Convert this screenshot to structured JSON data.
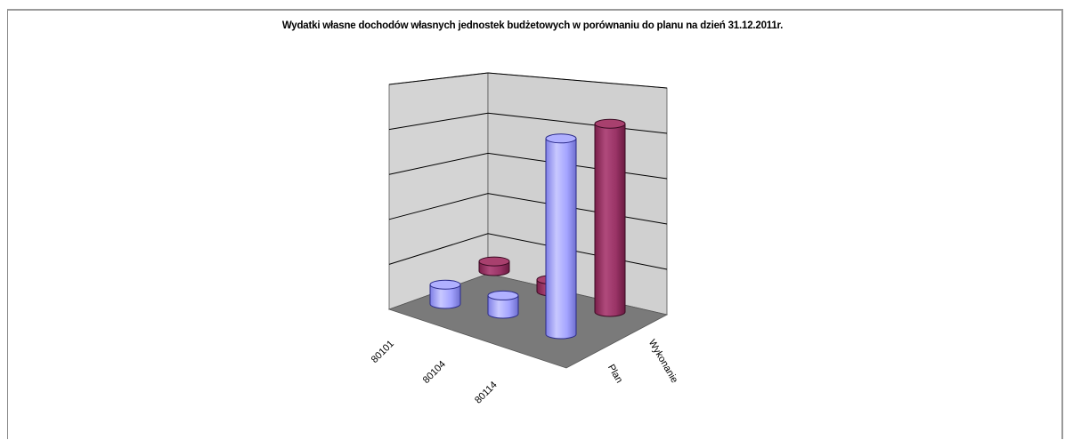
{
  "chart_data": {
    "type": "bar",
    "subtype": "3d-cylinder",
    "title": "Wydatki własne dochodów własnych jednostek budżetowych w porównaniu do planu na dzień 31.12.2011r.",
    "categories": [
      "80101",
      "80104",
      "80114"
    ],
    "series": [
      {
        "name": "Plan",
        "values": [
          90,
          85,
          910
        ]
      },
      {
        "name": "Wykonanie",
        "values": [
          45,
          55,
          875
        ]
      }
    ],
    "ylim": [
      0,
      1000
    ],
    "gridlines": 5,
    "grid": true,
    "legend": "none",
    "colors": {
      "Plan": "#9999ff",
      "Wykonanie": "#993366",
      "wall": "#d4d4d4",
      "floor": "#7a7a7a",
      "grid": "#000000"
    }
  }
}
